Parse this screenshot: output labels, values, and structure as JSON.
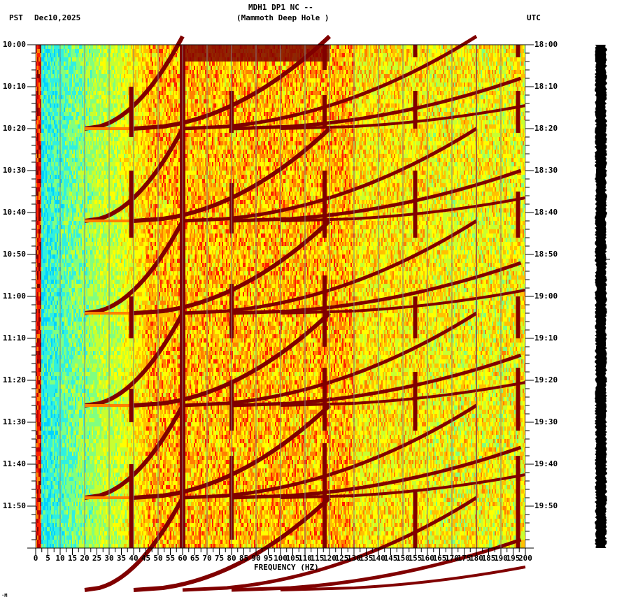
{
  "header": {
    "title_line1": "MDH1 DP1 NC --",
    "title_line2": "(Mammoth Deep Hole )",
    "left_tz": "PST",
    "date": "Dec10,2025",
    "right_tz": "UTC"
  },
  "footer": {
    "corner_mark": "·M"
  },
  "colors": {
    "colormap": [
      "#0050ff",
      "#0096ff",
      "#00d2ff",
      "#30f0e0",
      "#80ff80",
      "#c8ff30",
      "#ffff00",
      "#ffc000",
      "#ff8000",
      "#ff2000",
      "#c00000",
      "#800000"
    ],
    "gridline": "#808080",
    "axis": "#000000",
    "background": "#ffffff",
    "trace": "#000000"
  },
  "chart_data": {
    "type": "heatmap",
    "title": "MDH1 DP1 NC -- (Mammoth Deep Hole )",
    "subtitle": "PST Dec10,2025",
    "xlabel": "FREQUENCY (HZ)",
    "ylabel_left": "PST",
    "ylabel_right": "UTC",
    "xlim": [
      0,
      200
    ],
    "x_ticks": [
      0,
      5,
      10,
      15,
      20,
      25,
      30,
      35,
      40,
      45,
      50,
      55,
      60,
      65,
      70,
      75,
      80,
      85,
      90,
      95,
      100,
      105,
      110,
      115,
      120,
      125,
      130,
      135,
      140,
      145,
      150,
      155,
      160,
      165,
      170,
      175,
      180,
      185,
      190,
      195,
      200
    ],
    "x_tick_labels": [
      "0",
      "5",
      "10",
      "15",
      "20",
      "25",
      "30",
      "35",
      "40",
      "45",
      "50",
      "55",
      "60",
      "65",
      "70",
      "75",
      "80",
      "85",
      "90",
      "95",
      "100",
      "105",
      "110",
      "115",
      "120",
      "125",
      "130",
      "135",
      "140",
      "145",
      "150",
      "155",
      "160",
      "165",
      "170",
      "175",
      "180",
      "185",
      "190",
      "195",
      "200"
    ],
    "y_ticks_left": [
      "10:00",
      "10:10",
      "10:20",
      "10:30",
      "10:40",
      "10:50",
      "11:00",
      "11:10",
      "11:20",
      "11:30",
      "11:40",
      "11:50"
    ],
    "y_ticks_right": [
      "18:00",
      "18:10",
      "18:20",
      "18:30",
      "18:40",
      "18:50",
      "19:00",
      "19:10",
      "19:20",
      "19:30",
      "19:40",
      "19:50"
    ],
    "time_range_pst": [
      "10:00",
      "12:00"
    ],
    "time_range_utc": [
      "18:00",
      "20:00"
    ],
    "minor_tick_interval_min": 2,
    "grid": {
      "vertical_every_hz": 10,
      "color": "gray"
    },
    "features": {
      "constant_line_hz": 60,
      "low_freq_band_hz": [
        0,
        30
      ],
      "low_freq_level": "low (blue/cyan)",
      "high_freq_level": "moderate-high (yellow/orange)",
      "sweep_cycle_minutes": 22,
      "sweep_start_times": [
        "09:58",
        "10:20",
        "10:42",
        "11:04",
        "11:26",
        "11:48"
      ],
      "vertical_stripes_hz": [
        40,
        80,
        118,
        155,
        198
      ],
      "thin_line_hz": 180
    },
    "colorscale": "jet (blue=low power, dark red=high power)"
  }
}
